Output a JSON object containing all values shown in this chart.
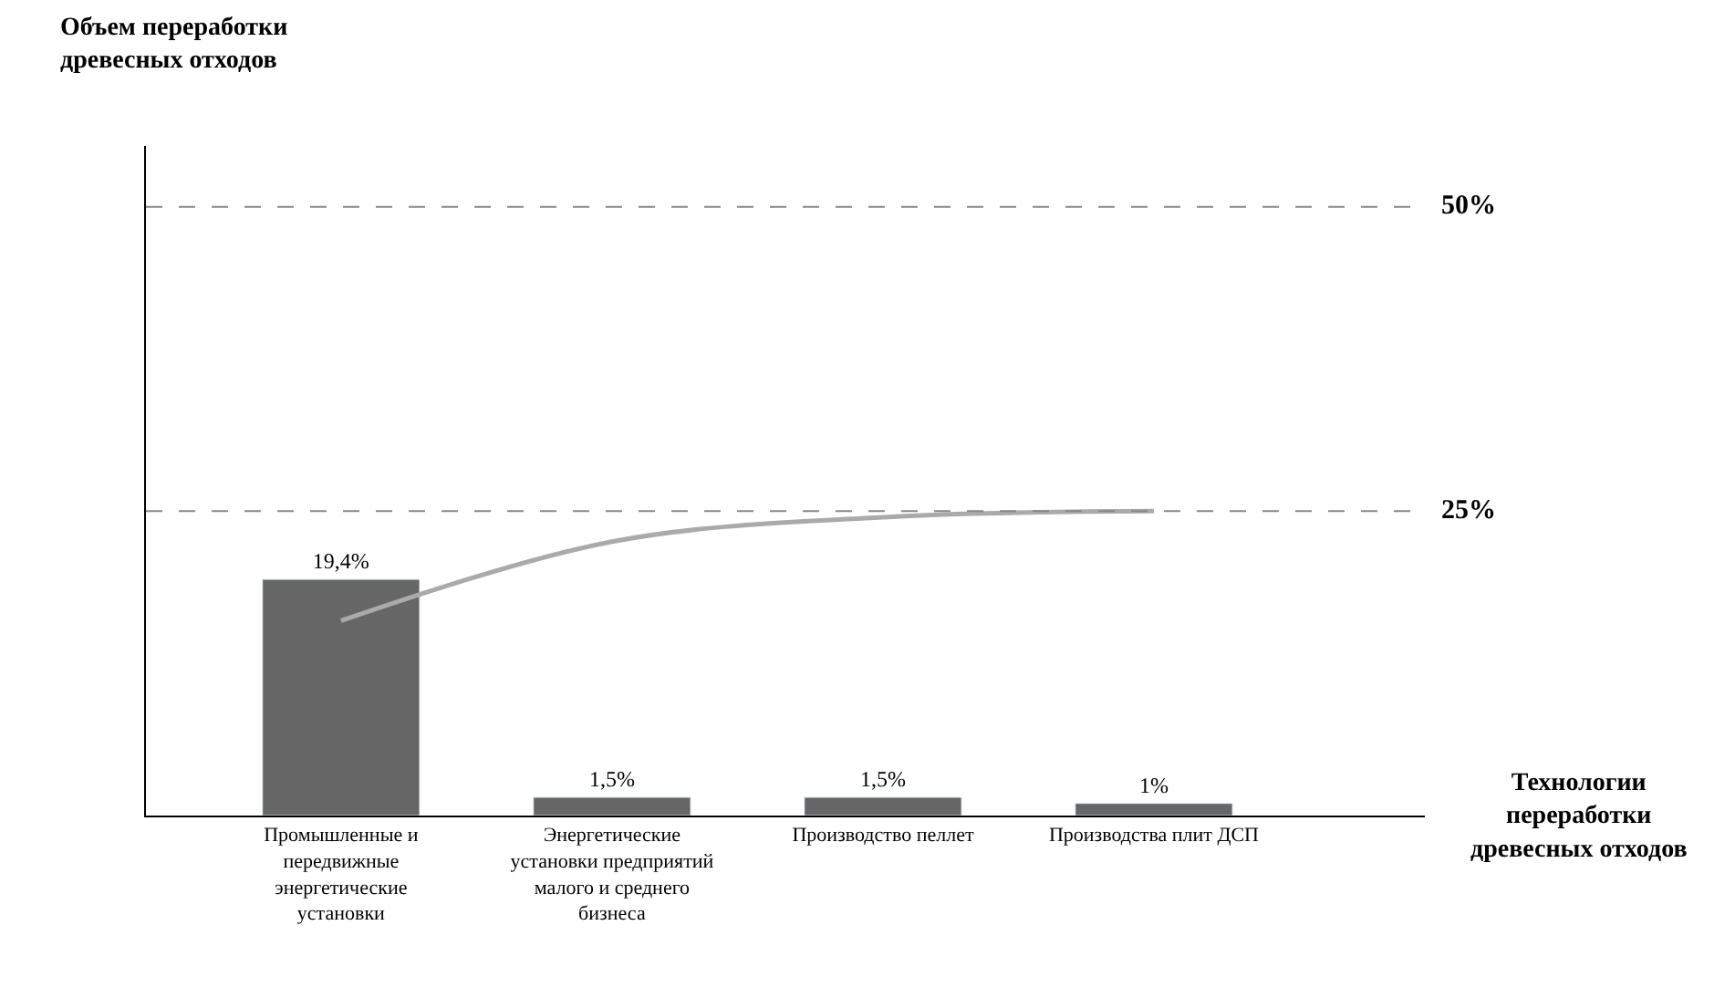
{
  "chart_data": {
    "type": "bar",
    "xlabel": "Технологии переработки древесных отходов",
    "ylabel": "Объем переработки древесных отходов",
    "categories": [
      "Промышленные и передвижные энергетические установки",
      "Энергетические установки предприятий малого и среднего бизнеса",
      "Производство пеллет",
      "Производства плит ДСП"
    ],
    "series": [
      {
        "color": "#666666",
        "values": [
          19.4,
          1.5,
          1.5,
          1
        ],
        "value_labels": [
          "19,4%",
          "1,5%",
          "1,5%",
          "1%"
        ]
      },
      {
        "type": "line",
        "color": "#aaaaaa",
        "values": [
          16,
          22.5,
          24.5,
          25
        ]
      }
    ],
    "ylim": [
      0,
      55
    ],
    "tick_labels": "x",
    "ref_lines": [
      {
        "axis": "y",
        "value": 50,
        "label": "50%",
        "color": "#888888",
        "line_style": "dashed"
      },
      {
        "axis": "y",
        "value": 25,
        "label": "25%",
        "color": "#888888",
        "line_style": "dashed"
      }
    ]
  }
}
